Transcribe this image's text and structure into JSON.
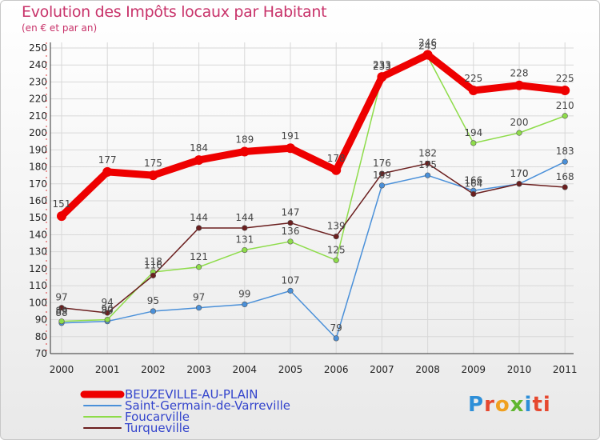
{
  "chart_data": {
    "type": "line",
    "title": "Evolution des Impôts locaux par Habitant",
    "subtitle": "(en € et par an)",
    "xlabel": "",
    "ylabel": "",
    "categories": [
      "2000",
      "2001",
      "2002",
      "2003",
      "2004",
      "2005",
      "2006",
      "2007",
      "2008",
      "2009",
      "2010",
      "2011"
    ],
    "y_ticks": [
      70,
      80,
      90,
      100,
      110,
      120,
      130,
      140,
      150,
      160,
      170,
      180,
      190,
      200,
      210,
      220,
      230,
      240,
      250
    ],
    "ylim": [
      70,
      250
    ],
    "grid": true,
    "legend_position": "bottom-left",
    "series": [
      {
        "name": "BEUZEVILLE-AU-PLAIN",
        "color": "#ee0000",
        "values": [
          151,
          177,
          175,
          184,
          189,
          191,
          178,
          233,
          246,
          225,
          228,
          225
        ]
      },
      {
        "name": "Saint-Germain-de-Varreville",
        "color": "#4a90d9",
        "values": [
          88,
          89,
          95,
          97,
          99,
          107,
          79,
          169,
          175,
          166,
          170,
          183
        ]
      },
      {
        "name": "Foucarville",
        "color": "#8edc4a",
        "values": [
          89,
          90,
          118,
          121,
          131,
          136,
          125,
          233,
          245,
          194,
          200,
          210
        ]
      },
      {
        "name": "Turqueville",
        "color": "#6b1f1f",
        "values": [
          97,
          94,
          116,
          144,
          144,
          147,
          139,
          176,
          182,
          164,
          170,
          168
        ]
      }
    ]
  },
  "logo": {
    "letters": [
      "P",
      "r",
      "o",
      "x",
      "i",
      "ti"
    ]
  }
}
